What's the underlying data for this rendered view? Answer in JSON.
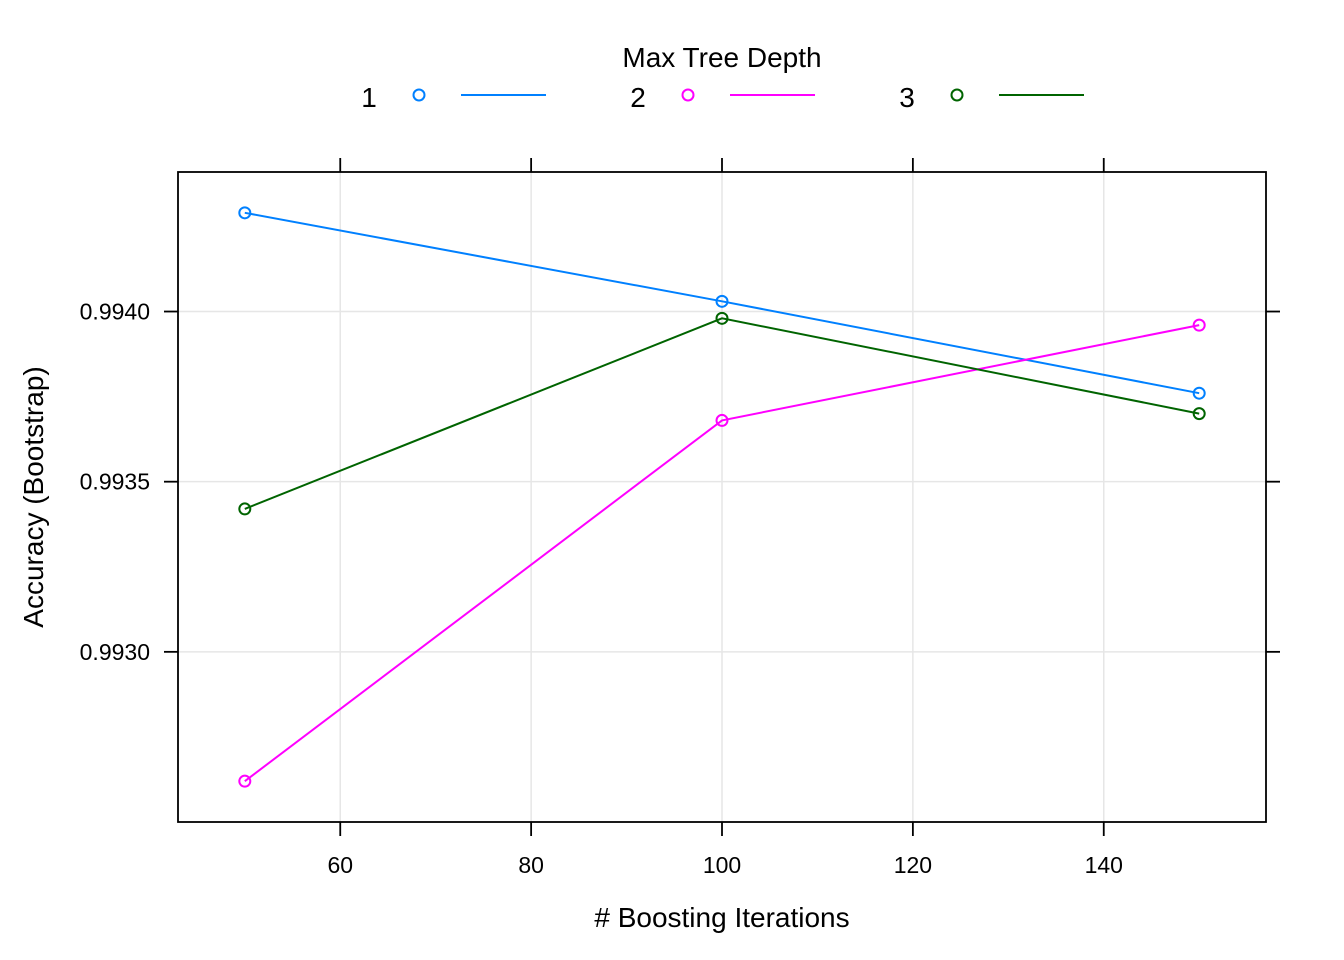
{
  "chart_data": {
    "type": "line",
    "xlabel": "# Boosting Iterations",
    "ylabel": "Accuracy (Bootstrap)",
    "xlim": [
      43,
      157
    ],
    "ylim": [
      0.9925,
      0.99441
    ],
    "x_ticks": [
      60,
      80,
      100,
      120,
      140
    ],
    "x_tick_labels": [
      "60",
      "80",
      "100",
      "120",
      "140"
    ],
    "y_ticks": [
      0.993,
      0.9935,
      0.994
    ],
    "y_tick_labels": [
      "0.9930",
      "0.9935",
      "0.9940"
    ],
    "grid": true,
    "legend": {
      "title": "Max Tree Depth",
      "position": "top"
    },
    "x": [
      50,
      100,
      150
    ],
    "series": [
      {
        "name": "1",
        "color": "#0080ff",
        "values": [
          0.99429,
          0.99403,
          0.99376
        ]
      },
      {
        "name": "2",
        "color": "#ff00ff",
        "values": [
          0.99262,
          0.99368,
          0.99396
        ]
      },
      {
        "name": "3",
        "color": "#006400",
        "values": [
          0.99342,
          0.99398,
          0.9937
        ]
      }
    ]
  }
}
